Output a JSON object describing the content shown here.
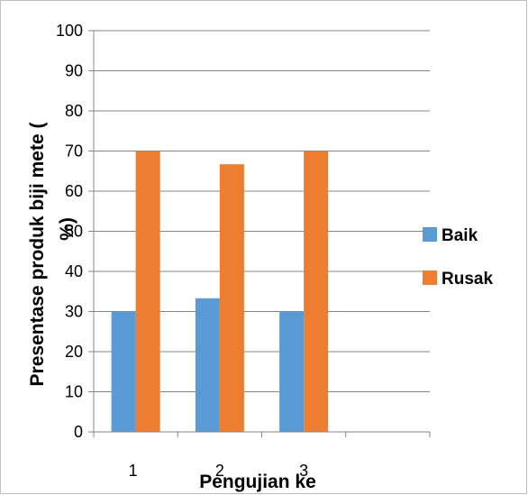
{
  "chart_data": {
    "type": "bar",
    "categories": [
      "1",
      "2",
      "3",
      ""
    ],
    "series": [
      {
        "name": "Baik",
        "color": "#5b9bd5",
        "values": [
          30,
          33.3,
          30,
          null
        ]
      },
      {
        "name": "Rusak",
        "color": "#ed7d31",
        "values": [
          70,
          66.7,
          70,
          null
        ]
      }
    ],
    "ylim": [
      0,
      100
    ],
    "yticks": [
      0,
      10,
      20,
      30,
      40,
      50,
      60,
      70,
      80,
      90,
      100
    ],
    "xlabel": "Pengujian ke",
    "ylabel_line1": "Presentase produk biji mete (",
    "ylabel_line2": "%)",
    "grid": true,
    "legend_position": "right"
  }
}
